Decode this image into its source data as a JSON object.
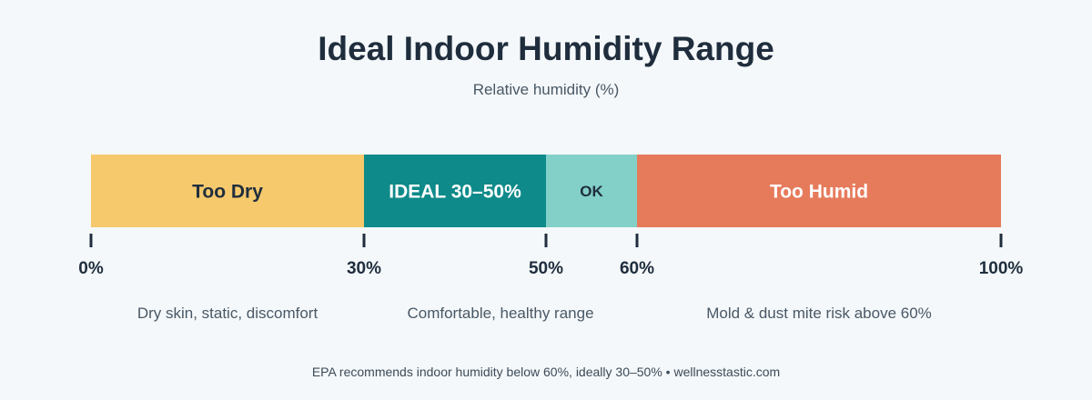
{
  "chart_data": {
    "type": "bar",
    "orientation": "horizontal-stacked-range",
    "title": "Ideal Indoor Humidity Range",
    "subtitle": "Relative humidity (%)",
    "xlim": [
      0,
      100
    ],
    "grid": false,
    "segments": [
      {
        "label": "Too Dry",
        "start": 0,
        "end": 30,
        "color": "#f5c96c",
        "text_color": "#1f2d3d"
      },
      {
        "label": "IDEAL 30–50%",
        "start": 30,
        "end": 50,
        "color": "#0f8a8a",
        "text_color": "#ffffff"
      },
      {
        "label": "OK",
        "start": 50,
        "end": 60,
        "color": "#82d0c8",
        "text_color": "#1f2d3d"
      },
      {
        "label": "Too Humid",
        "start": 60,
        "end": 100,
        "color": "#e67b5c",
        "text_color": "#ffffff"
      }
    ],
    "ticks": [
      {
        "value": 0,
        "label": "0%"
      },
      {
        "value": 30,
        "label": "30%"
      },
      {
        "value": 50,
        "label": "50%"
      },
      {
        "value": 60,
        "label": "60%"
      },
      {
        "value": 100,
        "label": "100%"
      }
    ],
    "annotations": [
      {
        "text": "Dry skin, static, discomfort",
        "at": 15
      },
      {
        "text": "Comfortable, healthy range",
        "at": 45
      },
      {
        "text": "Mold & dust mite risk above 60%",
        "at": 80
      }
    ]
  },
  "footer": "EPA recommends indoor humidity below 60%, ideally 30–50% • wellnesstastic.com"
}
